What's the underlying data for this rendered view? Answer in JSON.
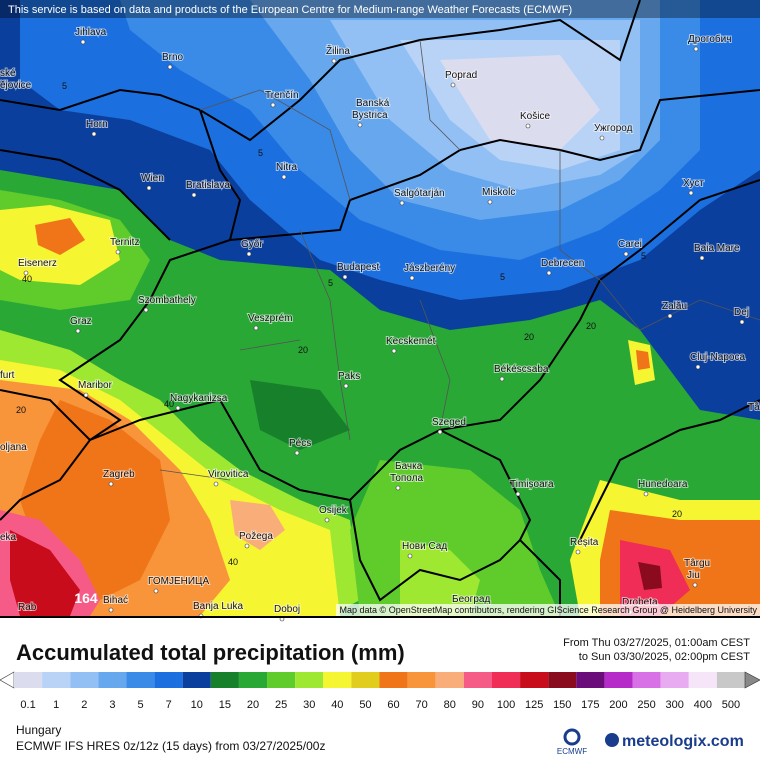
{
  "header": {
    "notice": "This service is based on data and products of the European Centre for Medium-range Weather Forecasts (ECMWF)"
  },
  "map": {
    "labels": [
      "Jihlava",
      "Brno",
      "Žilina",
      "Poprad",
      "Дрогобич",
      "Trenčín",
      "Banská",
      "Bystrica",
      "Košice",
      "Ужгород",
      "Horn",
      "Nitra",
      "Wien",
      "Bratislava",
      "Salgótarján",
      "Miskolc",
      "Хуст",
      "Ternitz",
      "Győr",
      "Carei",
      "Baia Mare",
      "Eisenerz",
      "Budapest",
      "Jászberény",
      "Debrecen",
      "Szombathely",
      "Zalău",
      "Graz",
      "Veszprém",
      "Dej",
      "Kecskemét",
      "Cluj-Napoca",
      "Paks",
      "Békéscsaba",
      "Maribor",
      "Nagykanizsa",
      "Szeged",
      "Pécs",
      "Zagreb",
      "Virovitica",
      "Бачка",
      "Топола",
      "Timișoara",
      "Hunedoara",
      "Osijek",
      "Požega",
      "Нови Сад",
      "Reșita",
      "Târgu",
      "Jiu",
      "ГОМЈЕНИЦА",
      "Banja Luka",
      "Doboj",
      "Београд",
      "Drobeta",
      "Bihać",
      "Rab",
      "ské",
      "ějovice",
      "furt",
      "oljana",
      "eka",
      "Tâ"
    ],
    "contour_labels": [
      "5",
      "5",
      "5",
      "5",
      "5",
      "20",
      "20",
      "20",
      "20",
      "20",
      "40",
      "40",
      "40"
    ],
    "max_label": "164",
    "attribution": "Map data © OpenStreetMap contributors, rendering GIScience Research Group @ Heidelberg University"
  },
  "legend": {
    "title": "Accumulated total precipitation (mm)",
    "period_from": "From Thu 03/27/2025, 01:00am CEST",
    "period_to": "to Sun 03/30/2025, 02:00pm CEST",
    "values": [
      0.1,
      1,
      2,
      3,
      5,
      7,
      10,
      15,
      20,
      25,
      30,
      40,
      50,
      60,
      70,
      80,
      90,
      100,
      125,
      150,
      175,
      200,
      250,
      300,
      400,
      500
    ],
    "colors": [
      "#dcdcef",
      "#b9d3f6",
      "#92c0f4",
      "#66a7ee",
      "#3a8ae8",
      "#1c6fde",
      "#0b3f9e",
      "#17802a",
      "#2aa836",
      "#5fcc2c",
      "#9ee832",
      "#f5f532",
      "#e0cd1e",
      "#f07418",
      "#f8943a",
      "#f9ae7a",
      "#f55b86",
      "#ef2d56",
      "#c80c1c",
      "#8a0a1e",
      "#6a0c7a",
      "#b52ac9",
      "#d870e6",
      "#e8aaf0",
      "#f6e4f8",
      "#c8c8c8"
    ]
  },
  "footer": {
    "region": "Hungary",
    "model": "ECMWF IFS HRES 0z/12z (15 days) from 03/27/2025/00z",
    "ecmwf": "ECMWF",
    "brand": "meteologix.com"
  }
}
